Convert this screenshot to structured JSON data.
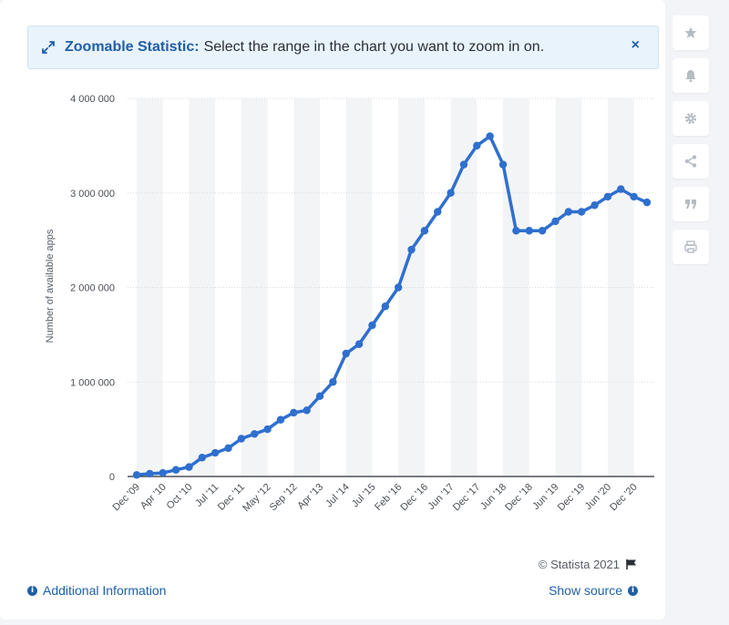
{
  "banner": {
    "title": "Zoomable Statistic:",
    "text": "Select the range in the chart you want to zoom in on.",
    "close": "×"
  },
  "sidebar": {
    "icons": [
      "star-icon",
      "bell-icon",
      "gear-icon",
      "share-icon",
      "quote-icon",
      "print-icon"
    ]
  },
  "footer": {
    "credit": "© Statista 2021",
    "additional_info": "Additional Information",
    "show_source": "Show source"
  },
  "colors": {
    "line": "#2f6fce",
    "band": "#f3f4f6",
    "grid": "#d7dade",
    "accent": "#1f5fa8"
  },
  "chart_data": {
    "type": "line",
    "ylabel": "Number of available apps",
    "xlabel": "",
    "ylim": [
      0,
      4000000
    ],
    "yticks": [
      0,
      1000000,
      2000000,
      3000000,
      4000000
    ],
    "ytick_labels": [
      "0",
      "1 000 000",
      "2 000 000",
      "3 000 000",
      "4 000 000"
    ],
    "xtick_labels": [
      "Dec '09",
      "Apr '10",
      "Oct '10",
      "Jul '11",
      "Dec '11",
      "May '12",
      "Sep '12",
      "Apr '13",
      "Jul '14",
      "Jul '15",
      "Feb '16",
      "Dec '16",
      "Jun '17",
      "Dec '17",
      "Jun '18",
      "Dec '18",
      "Jun '19",
      "Dec '19",
      "Jun '20",
      "Dec '20"
    ],
    "xtick_index": [
      0,
      2,
      4,
      6,
      8,
      10,
      12,
      14,
      16,
      18,
      20,
      22,
      24,
      26,
      28,
      30,
      32,
      34,
      36,
      38
    ],
    "grid": true,
    "series": [
      {
        "values": [
          16000,
          30000,
          38000,
          70000,
          100000,
          200000,
          250000,
          300000,
          400000,
          450000,
          500000,
          600000,
          675000,
          700000,
          850000,
          1000000,
          1300000,
          1400000,
          1600000,
          1800000,
          2000000,
          2400000,
          2600000,
          2800000,
          3000000,
          3300000,
          3500000,
          3600000,
          3300000,
          2600000,
          2600000,
          2600000,
          2700000,
          2800000,
          2800000,
          2870000,
          2960000,
          3040000,
          2960000,
          2900000
        ]
      }
    ]
  }
}
